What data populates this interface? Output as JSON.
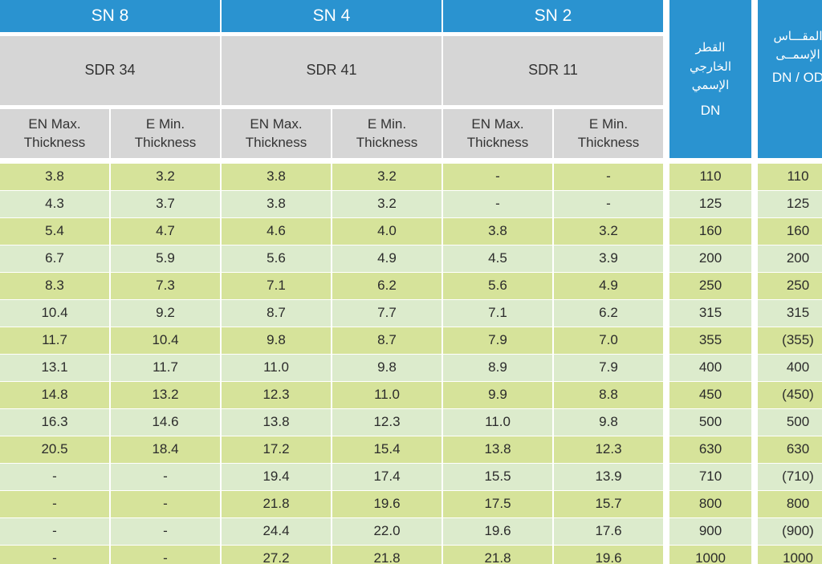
{
  "header": {
    "sn_groups": [
      {
        "sn": "SN 8",
        "sdr": "SDR 34"
      },
      {
        "sn": "SN 4",
        "sdr": "SDR 41"
      },
      {
        "sn": "SN 2",
        "sdr": "SDR 11"
      }
    ],
    "sub_headers": [
      "EN Max.\nThickness",
      "E Min.\nThickness"
    ],
    "outer_diameter": {
      "arabic_lines": [
        "القطر",
        "الخارجي",
        "الإسمي"
      ],
      "label": "DN"
    },
    "nominal_size": {
      "arabic_lines": [
        "المقـــاس",
        "الإسمــى"
      ],
      "label": "DN / OD"
    }
  },
  "rows": [
    [
      "3.8",
      "3.2",
      "3.8",
      "3.2",
      "-",
      "-",
      "110",
      "110"
    ],
    [
      "4.3",
      "3.7",
      "3.8",
      "3.2",
      "-",
      "-",
      "125",
      "125"
    ],
    [
      "5.4",
      "4.7",
      "4.6",
      "4.0",
      "3.8",
      "3.2",
      "160",
      "160"
    ],
    [
      "6.7",
      "5.9",
      "5.6",
      "4.9",
      "4.5",
      "3.9",
      "200",
      "200"
    ],
    [
      "8.3",
      "7.3",
      "7.1",
      "6.2",
      "5.6",
      "4.9",
      "250",
      "250"
    ],
    [
      "10.4",
      "9.2",
      "8.7",
      "7.7",
      "7.1",
      "6.2",
      "315",
      "315"
    ],
    [
      "11.7",
      "10.4",
      "9.8",
      "8.7",
      "7.9",
      "7.0",
      "355",
      "(355)"
    ],
    [
      "13.1",
      "11.7",
      "11.0",
      "9.8",
      "8.9",
      "7.9",
      "400",
      "400"
    ],
    [
      "14.8",
      "13.2",
      "12.3",
      "11.0",
      "9.9",
      "8.8",
      "450",
      "(450)"
    ],
    [
      "16.3",
      "14.6",
      "13.8",
      "12.3",
      "11.0",
      "9.8",
      "500",
      "500"
    ],
    [
      "20.5",
      "18.4",
      "17.2",
      "15.4",
      "13.8",
      "12.3",
      "630",
      "630"
    ],
    [
      "-",
      "-",
      "19.4",
      "17.4",
      "15.5",
      "13.9",
      "710",
      "(710)"
    ],
    [
      "-",
      "-",
      "21.8",
      "19.6",
      "17.5",
      "15.7",
      "800",
      "800"
    ],
    [
      "-",
      "-",
      "24.4",
      "22.0",
      "19.6",
      "17.6",
      "900",
      "(900)"
    ],
    [
      "-",
      "-",
      "27.2",
      "21.8",
      "21.8",
      "19.6",
      "1000",
      "1000"
    ]
  ],
  "colors": {
    "header_blue": "#2a93d0",
    "header_grey": "#d6d6d6",
    "row_yellow_green": "#d6e39a",
    "row_pale_green": "#dcebcc"
  }
}
